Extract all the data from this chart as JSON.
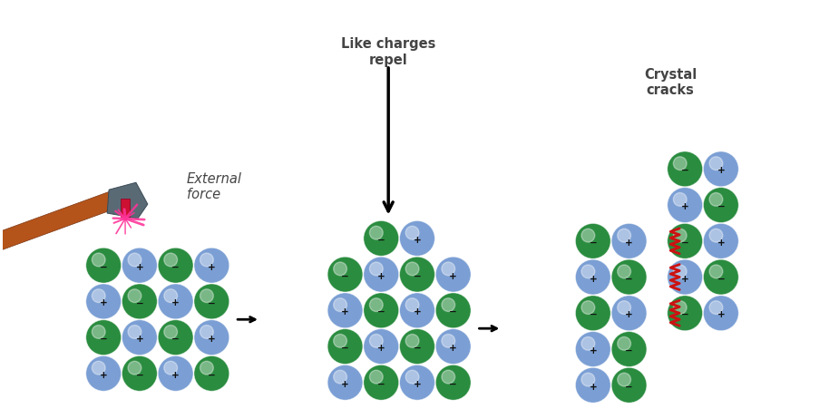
{
  "bg_color": "#ffffff",
  "green_color": "#2a8c3f",
  "blue_color": "#7b9fd4",
  "text_color": "#444444",
  "crack_color": "#cc1111",
  "hammer_wood_color": "#b5541a",
  "hammer_metal_color": "#5a6a75",
  "hammer_metal_dark": "#3a4a55",
  "spark_color": "#ff3399",
  "title1": "External\nforce",
  "title2": "Like charges\nrepel",
  "title3": "Crystal\ncracks"
}
